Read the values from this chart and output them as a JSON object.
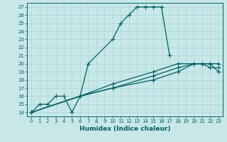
{
  "xlabel": "Humidex (Indice chaleur)",
  "background_color": "#c8e8e8",
  "line_color": "#006060",
  "grid_color": "#a8d4d4",
  "xlim": [
    -0.5,
    23.5
  ],
  "ylim": [
    13.5,
    27.5
  ],
  "xticks": [
    0,
    1,
    2,
    3,
    4,
    5,
    6,
    7,
    8,
    9,
    10,
    11,
    12,
    13,
    14,
    15,
    16,
    17,
    18,
    19,
    20,
    21,
    22,
    23
  ],
  "yticks": [
    14,
    15,
    16,
    17,
    18,
    19,
    20,
    21,
    22,
    23,
    24,
    25,
    26,
    27
  ],
  "main_series": {
    "x": [
      0,
      1,
      2,
      3,
      4,
      5,
      6,
      7,
      10,
      11,
      12,
      13,
      14,
      15,
      16,
      17
    ],
    "y": [
      14,
      15,
      15,
      16,
      16,
      14,
      16,
      20,
      23,
      25,
      26,
      27,
      27,
      27,
      27,
      21
    ]
  },
  "line_series": [
    {
      "x": [
        0,
        6,
        10,
        15,
        18,
        20,
        21,
        22,
        23
      ],
      "y": [
        14,
        16,
        17,
        18,
        19,
        20,
        20,
        20,
        19
      ]
    },
    {
      "x": [
        0,
        6,
        10,
        15,
        18,
        20,
        21,
        22,
        23
      ],
      "y": [
        14,
        16,
        17,
        18.5,
        19.5,
        20,
        20,
        19.5,
        19.5
      ]
    },
    {
      "x": [
        0,
        6,
        10,
        15,
        18,
        20,
        21,
        22,
        23
      ],
      "y": [
        14,
        16,
        17.5,
        19,
        20,
        20,
        20,
        20,
        20
      ]
    }
  ],
  "marker": "+",
  "markersize": 4,
  "linewidth": 0.9,
  "tick_fontsize": 5,
  "xlabel_fontsize": 6.5
}
